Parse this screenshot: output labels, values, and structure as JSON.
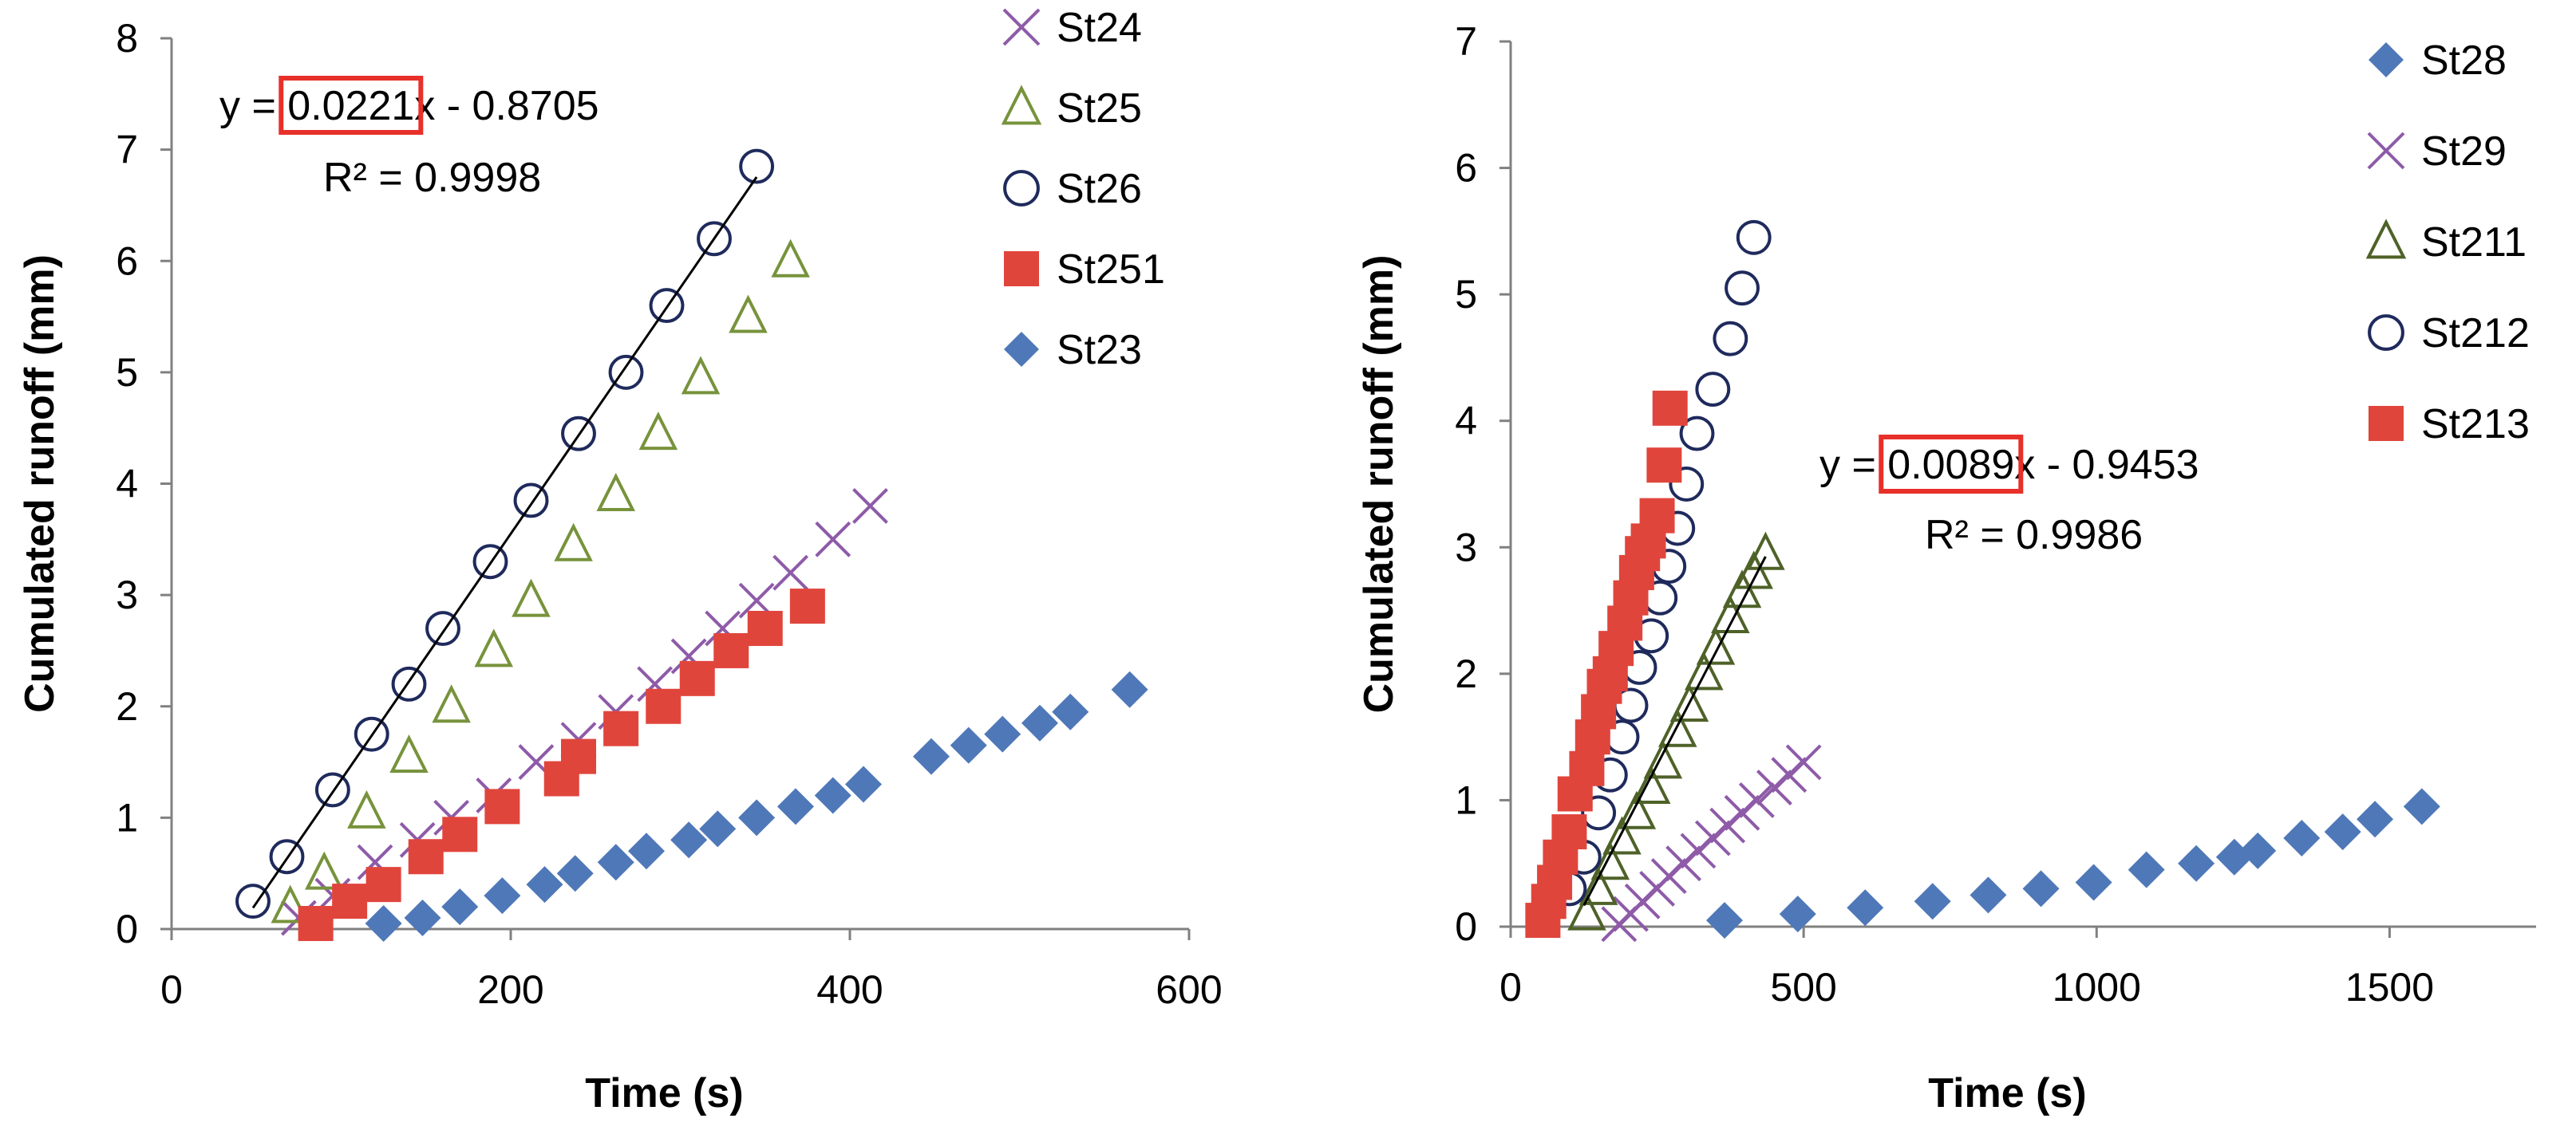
{
  "chart_data": [
    {
      "type": "scatter",
      "title": "",
      "xlabel": "Time (s)",
      "ylabel": "Cumulated runoff (mm)",
      "xlim": [
        0,
        600
      ],
      "ylim": [
        0,
        8
      ],
      "xticks": [
        0,
        200,
        400,
        600
      ],
      "yticks": [
        0,
        1,
        2,
        3,
        4,
        5,
        6,
        7,
        8
      ],
      "grid": false,
      "legend_position": "right",
      "series": [
        {
          "name": "St24",
          "marker": "x",
          "color": "#8E5BA8",
          "x": [
            75,
            95,
            120,
            145,
            165,
            190,
            215,
            240,
            262,
            285,
            305,
            325,
            345,
            365,
            390,
            412
          ],
          "y": [
            0.1,
            0.3,
            0.6,
            0.8,
            1.0,
            1.2,
            1.5,
            1.7,
            1.95,
            2.2,
            2.45,
            2.7,
            2.95,
            3.2,
            3.5,
            3.8
          ]
        },
        {
          "name": "St25",
          "marker": "triangle",
          "color": "#77933C",
          "x": [
            70,
            90,
            115,
            140,
            165,
            190,
            212,
            237,
            262,
            287,
            312,
            340,
            365
          ],
          "y": [
            0.2,
            0.5,
            1.05,
            1.55,
            2.0,
            2.5,
            2.95,
            3.45,
            3.9,
            4.45,
            4.95,
            5.5,
            6.0
          ]
        },
        {
          "name": "St26",
          "marker": "circle",
          "color": "#1F2A5C",
          "x": [
            48,
            68,
            95,
            118,
            140,
            160,
            188,
            212,
            240,
            268,
            292,
            320,
            345
          ],
          "y": [
            0.25,
            0.65,
            1.25,
            1.75,
            2.2,
            2.7,
            3.3,
            3.85,
            4.45,
            5.0,
            5.6,
            6.2,
            6.85
          ]
        },
        {
          "name": "St251",
          "marker": "square",
          "color": "#E0453C",
          "x": [
            85,
            105,
            125,
            150,
            170,
            195,
            230,
            240,
            265,
            290,
            310,
            330,
            350,
            375
          ],
          "y": [
            0.05,
            0.25,
            0.4,
            0.65,
            0.85,
            1.1,
            1.35,
            1.55,
            1.8,
            2.0,
            2.25,
            2.5,
            2.7,
            2.9
          ]
        },
        {
          "name": "St23",
          "marker": "diamond",
          "color": "#4F78B8",
          "x": [
            125,
            148,
            170,
            195,
            220,
            238,
            262,
            280,
            305,
            322,
            345,
            368,
            390,
            408,
            448,
            470,
            490,
            512,
            530,
            565
          ],
          "y": [
            0.05,
            0.1,
            0.2,
            0.3,
            0.4,
            0.5,
            0.6,
            0.7,
            0.8,
            0.9,
            1.0,
            1.1,
            1.2,
            1.3,
            1.55,
            1.65,
            1.75,
            1.85,
            1.95,
            2.15
          ]
        }
      ],
      "trendline": {
        "x": [
          48,
          345
        ],
        "slope": 0.0221,
        "intercept": -0.8705
      },
      "equation": {
        "prefix": "y = ",
        "slope": "0.0221",
        "suffix": "x - 0.8705",
        "r2": "R² = 0.9998"
      }
    },
    {
      "type": "scatter",
      "title": "",
      "xlabel": "Time (s)",
      "ylabel": "Cumulated runoff (mm)",
      "xlim": [
        0,
        1750
      ],
      "ylim": [
        0,
        7
      ],
      "xticks": [
        0,
        500,
        1000,
        1500
      ],
      "yticks": [
        0,
        1,
        2,
        3,
        4,
        5,
        6,
        7
      ],
      "grid": false,
      "legend_position": "right",
      "series": [
        {
          "name": "St28",
          "marker": "diamond",
          "color": "#4F78B8",
          "x": [
            365,
            490,
            605,
            720,
            815,
            905,
            995,
            1085,
            1170,
            1235,
            1275,
            1350,
            1420,
            1475,
            1555
          ],
          "y": [
            0.05,
            0.1,
            0.15,
            0.2,
            0.25,
            0.3,
            0.35,
            0.45,
            0.5,
            0.55,
            0.6,
            0.7,
            0.75,
            0.85,
            0.95
          ]
        },
        {
          "name": "St29",
          "marker": "x",
          "color": "#8E5BA8",
          "x": [
            185,
            205,
            225,
            250,
            270,
            295,
            320,
            345,
            370,
            395,
            420,
            450,
            475,
            500
          ],
          "y": [
            0.02,
            0.1,
            0.2,
            0.3,
            0.4,
            0.5,
            0.6,
            0.7,
            0.8,
            0.9,
            1.0,
            1.1,
            1.2,
            1.3
          ]
        },
        {
          "name": "St211",
          "marker": "triangle",
          "color": "#4E6228",
          "x": [
            130,
            150,
            170,
            190,
            215,
            240,
            260,
            285,
            305,
            330,
            350,
            375,
            395,
            415,
            435
          ],
          "y": [
            0.1,
            0.3,
            0.5,
            0.7,
            0.9,
            1.1,
            1.3,
            1.55,
            1.75,
            2.0,
            2.2,
            2.45,
            2.65,
            2.8,
            2.95
          ]
        },
        {
          "name": "St212",
          "marker": "circle",
          "color": "#1F2A5C",
          "x": [
            100,
            125,
            150,
            170,
            190,
            205,
            220,
            240,
            255,
            270,
            285,
            300,
            318,
            345,
            375,
            395,
            415
          ],
          "y": [
            0.3,
            0.55,
            0.9,
            1.2,
            1.5,
            1.75,
            2.05,
            2.3,
            2.6,
            2.85,
            3.15,
            3.5,
            3.9,
            4.25,
            4.65,
            5.05,
            5.45
          ]
        },
        {
          "name": "St213",
          "marker": "square",
          "color": "#E0453C",
          "x": [
            55,
            65,
            75,
            85,
            100,
            110,
            130,
            140,
            150,
            160,
            170,
            180,
            195,
            205,
            215,
            225,
            235,
            250,
            262,
            272
          ],
          "y": [
            0.05,
            0.2,
            0.35,
            0.55,
            0.75,
            1.05,
            1.25,
            1.5,
            1.7,
            1.9,
            2.0,
            2.2,
            2.4,
            2.6,
            2.8,
            2.95,
            3.05,
            3.25,
            3.65,
            4.1
          ]
        }
      ],
      "trendline": {
        "x": [
          125,
          435
        ],
        "slope": 0.0089,
        "intercept": -0.9453
      },
      "equation": {
        "prefix": "y = ",
        "slope": "0.0089",
        "suffix": "x - 0.9453",
        "r2": "R² = 0.9986"
      }
    }
  ]
}
